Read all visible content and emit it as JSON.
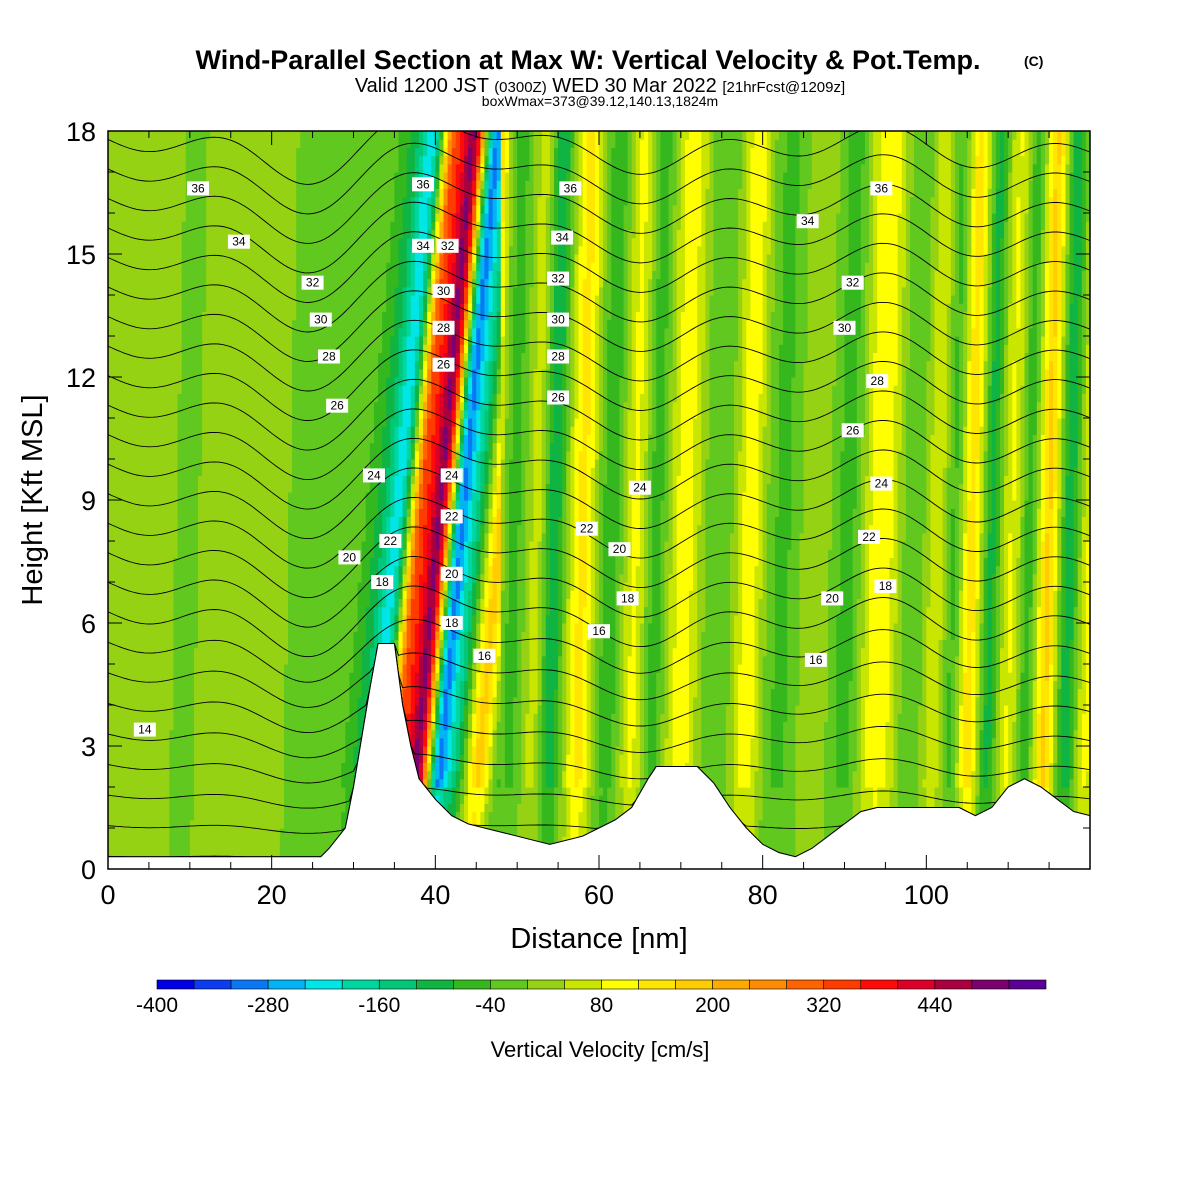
{
  "chart_data": {
    "type": "heatmap",
    "title": "Wind-Parallel Section at Max W: Vertical Velocity & Pot.Temp.",
    "title_mark": "(C)",
    "subtitle_parts": [
      "Valid 1200 JST",
      "(0300Z)",
      "WED 30 Mar 2022",
      "[21hrFcst@1209z]"
    ],
    "subtitle2": "boxWmax=373@39.12,140.13,1824m",
    "xlabel": "Distance [nm]",
    "ylabel": "Height [Kft MSL]",
    "xlim": [
      0,
      120
    ],
    "ylim": [
      0,
      18
    ],
    "xticks": [
      0,
      20,
      40,
      60,
      80,
      100
    ],
    "yticks": [
      0,
      3,
      6,
      9,
      12,
      15,
      18
    ],
    "colorbar": {
      "label": "Vertical Velocity [cm/s]",
      "range": [
        -400,
        520
      ],
      "step": 40,
      "tick_labels": [
        -400,
        -280,
        -160,
        -40,
        80,
        200,
        320,
        440
      ],
      "colors": [
        "#0000e6",
        "#0d3cf0",
        "#0a78f5",
        "#00b4f5",
        "#00e6e6",
        "#00d7a0",
        "#00c878",
        "#10b442",
        "#35b81e",
        "#60c81e",
        "#96d214",
        "#c8e600",
        "#ffff00",
        "#ffe600",
        "#ffcd00",
        "#ffaa00",
        "#ff8c00",
        "#ff6400",
        "#ff3c00",
        "#ff0a0a",
        "#dc0028",
        "#aa0040",
        "#7d0070",
        "#5a0096"
      ]
    },
    "background_w": 0,
    "w_bands": [
      {
        "x": 0,
        "w": 20,
        "width": 40
      },
      {
        "x": 9,
        "w": -20,
        "width": 6
      },
      {
        "x": 25,
        "w": -30,
        "width": 4
      },
      {
        "x": 31,
        "w": -80,
        "width": 2
      },
      {
        "x": 33.5,
        "w": -220,
        "width": 1.6
      },
      {
        "x": 36,
        "w": 280,
        "width": 1.4
      },
      {
        "x": 38.5,
        "w": 470,
        "width": 1.6
      },
      {
        "x": 41,
        "w": -300,
        "width": 1.3
      },
      {
        "x": 43,
        "w": -140,
        "width": 1.4
      },
      {
        "x": 46,
        "w": 170,
        "width": 1.5
      },
      {
        "x": 49,
        "w": -60,
        "width": 1.6
      },
      {
        "x": 52,
        "w": 60,
        "width": 1.4
      },
      {
        "x": 54,
        "w": -120,
        "width": 1.3
      },
      {
        "x": 57.5,
        "w": 130,
        "width": 1.6
      },
      {
        "x": 61,
        "w": -70,
        "width": 1.6
      },
      {
        "x": 64,
        "w": 90,
        "width": 1.6
      },
      {
        "x": 66.5,
        "w": -70,
        "width": 1.4
      },
      {
        "x": 70,
        "w": 100,
        "width": 2.0
      },
      {
        "x": 74,
        "w": -40,
        "width": 1.8
      },
      {
        "x": 78,
        "w": 110,
        "width": 1.6
      },
      {
        "x": 82,
        "w": -50,
        "width": 2.0
      },
      {
        "x": 86,
        "w": 30,
        "width": 2.0
      },
      {
        "x": 90,
        "w": -60,
        "width": 1.8
      },
      {
        "x": 94,
        "w": 120,
        "width": 2.2
      },
      {
        "x": 98,
        "w": -40,
        "width": 1.8
      },
      {
        "x": 101,
        "w": 80,
        "width": 1.6
      },
      {
        "x": 103,
        "w": -90,
        "width": 1.4
      },
      {
        "x": 105,
        "w": 150,
        "width": 1.6
      },
      {
        "x": 107.5,
        "w": -110,
        "width": 1.3
      },
      {
        "x": 110,
        "w": 90,
        "width": 1.6
      },
      {
        "x": 112,
        "w": -80,
        "width": 1.2
      },
      {
        "x": 114.5,
        "w": 170,
        "width": 1.4
      },
      {
        "x": 117,
        "w": -110,
        "width": 1.4
      },
      {
        "x": 119.5,
        "w": 90,
        "width": 1.4
      }
    ],
    "terrain": [
      [
        0,
        0.3
      ],
      [
        26,
        0.3
      ],
      [
        27,
        0.5
      ],
      [
        29,
        1.0
      ],
      [
        30,
        2.0
      ],
      [
        31,
        3.2
      ],
      [
        32,
        4.4
      ],
      [
        33,
        5.5
      ],
      [
        35,
        5.5
      ],
      [
        36,
        4.0
      ],
      [
        37,
        3.0
      ],
      [
        38,
        2.2
      ],
      [
        40,
        1.7
      ],
      [
        42,
        1.3
      ],
      [
        44,
        1.1
      ],
      [
        46,
        1.0
      ],
      [
        48,
        0.9
      ],
      [
        50,
        0.8
      ],
      [
        52,
        0.7
      ],
      [
        54,
        0.6
      ],
      [
        58,
        0.8
      ],
      [
        60,
        1.0
      ],
      [
        62,
        1.2
      ],
      [
        64,
        1.5
      ],
      [
        66,
        2.2
      ],
      [
        67,
        2.5
      ],
      [
        72,
        2.5
      ],
      [
        74,
        2.1
      ],
      [
        76,
        1.5
      ],
      [
        78,
        1.0
      ],
      [
        80,
        0.6
      ],
      [
        82,
        0.4
      ],
      [
        84,
        0.3
      ],
      [
        86,
        0.5
      ],
      [
        88,
        0.8
      ],
      [
        90,
        1.1
      ],
      [
        92,
        1.4
      ],
      [
        94,
        1.5
      ],
      [
        96,
        1.5
      ],
      [
        98,
        1.5
      ],
      [
        100,
        1.5
      ],
      [
        104,
        1.5
      ],
      [
        106,
        1.3
      ],
      [
        108,
        1.5
      ],
      [
        110,
        2.0
      ],
      [
        112,
        2.2
      ],
      [
        114,
        2.0
      ],
      [
        116,
        1.7
      ],
      [
        118,
        1.4
      ],
      [
        120,
        1.3
      ]
    ],
    "theta_labels": [
      {
        "v": "36",
        "x": 11,
        "y": 16.6
      },
      {
        "v": "34",
        "x": 16,
        "y": 15.3
      },
      {
        "v": "32",
        "x": 25,
        "y": 14.3
      },
      {
        "v": "30",
        "x": 26,
        "y": 13.4
      },
      {
        "v": "28",
        "x": 27,
        "y": 12.5
      },
      {
        "v": "26",
        "x": 28,
        "y": 11.3
      },
      {
        "v": "24",
        "x": 32.5,
        "y": 9.6
      },
      {
        "v": "22",
        "x": 34.5,
        "y": 8.0
      },
      {
        "v": "20",
        "x": 29.5,
        "y": 7.6
      },
      {
        "v": "18",
        "x": 33.5,
        "y": 7.0
      },
      {
        "v": "14",
        "x": 4.5,
        "y": 3.4
      },
      {
        "v": "36",
        "x": 38.5,
        "y": 16.7
      },
      {
        "v": "34",
        "x": 38.5,
        "y": 15.2
      },
      {
        "v": "32",
        "x": 41.5,
        "y": 15.2
      },
      {
        "v": "30",
        "x": 41.0,
        "y": 14.1
      },
      {
        "v": "28",
        "x": 41.0,
        "y": 13.2
      },
      {
        "v": "26",
        "x": 41.0,
        "y": 12.3
      },
      {
        "v": "24",
        "x": 42.0,
        "y": 9.6
      },
      {
        "v": "22",
        "x": 42.0,
        "y": 8.6
      },
      {
        "v": "20",
        "x": 42.0,
        "y": 7.2
      },
      {
        "v": "18",
        "x": 42.0,
        "y": 6.0
      },
      {
        "v": "16",
        "x": 46.0,
        "y": 5.2
      },
      {
        "v": "36",
        "x": 56.5,
        "y": 16.6
      },
      {
        "v": "34",
        "x": 55.5,
        "y": 15.4
      },
      {
        "v": "32",
        "x": 55.0,
        "y": 14.4
      },
      {
        "v": "30",
        "x": 55.0,
        "y": 13.4
      },
      {
        "v": "28",
        "x": 55.0,
        "y": 12.5
      },
      {
        "v": "26",
        "x": 55.0,
        "y": 11.5
      },
      {
        "v": "24",
        "x": 65.0,
        "y": 9.3
      },
      {
        "v": "22",
        "x": 58.5,
        "y": 8.3
      },
      {
        "v": "20",
        "x": 62.5,
        "y": 7.8
      },
      {
        "v": "18",
        "x": 63.5,
        "y": 6.6
      },
      {
        "v": "16",
        "x": 60.0,
        "y": 5.8
      },
      {
        "v": "36",
        "x": 94.5,
        "y": 16.6
      },
      {
        "v": "34",
        "x": 85.5,
        "y": 15.8
      },
      {
        "v": "32",
        "x": 91.0,
        "y": 14.3
      },
      {
        "v": "30",
        "x": 90.0,
        "y": 13.2
      },
      {
        "v": "28",
        "x": 94.0,
        "y": 11.9
      },
      {
        "v": "26",
        "x": 91.0,
        "y": 10.7
      },
      {
        "v": "24",
        "x": 94.5,
        "y": 9.4
      },
      {
        "v": "22",
        "x": 93.0,
        "y": 8.1
      },
      {
        "v": "20",
        "x": 88.5,
        "y": 6.6
      },
      {
        "v": "18",
        "x": 95.0,
        "y": 6.9
      },
      {
        "v": "16",
        "x": 86.5,
        "y": 5.1
      }
    ]
  }
}
